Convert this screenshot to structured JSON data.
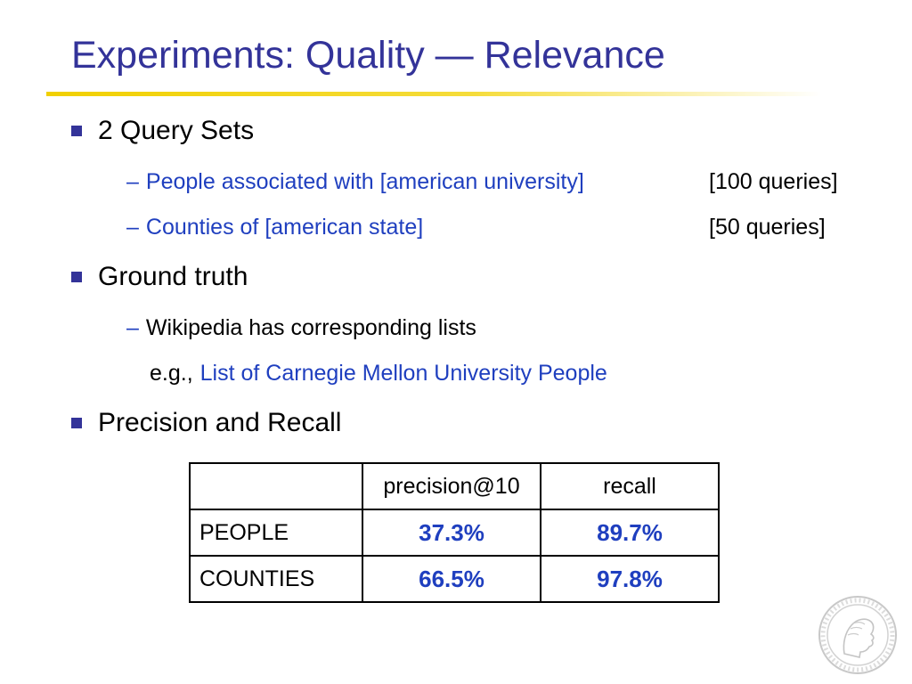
{
  "title": "Experiments: Quality — Relevance",
  "bullets": [
    {
      "text": "2 Query Sets",
      "subitems": [
        {
          "dash": "–",
          "text": "People associated with [american university]",
          "count": "[100 queries]"
        },
        {
          "dash": "–",
          "text": "Counties of [american state]",
          "count": "[50 queries]"
        }
      ]
    },
    {
      "text": "Ground truth",
      "subitems": [
        {
          "dash": "–",
          "text": "Wikipedia has corresponding lists"
        }
      ],
      "example": {
        "prefix": "e.g.,",
        "link": "List of Carnegie Mellon University People"
      }
    },
    {
      "text": "Precision and Recall"
    }
  ],
  "table": {
    "headers": [
      "",
      "precision@10",
      "recall"
    ],
    "rows": [
      {
        "label": "PEOPLE",
        "precision": "37.3%",
        "recall": "89.7%"
      },
      {
        "label": "COUNTIES",
        "precision": "66.5%",
        "recall": "97.8%"
      }
    ]
  },
  "colors": {
    "title": "#333399",
    "accent_rule": "#f1d000",
    "link_blue": "#1f3fbf",
    "bullet": "#333399"
  },
  "icons": {
    "seal": "max-planck-seal-icon"
  }
}
